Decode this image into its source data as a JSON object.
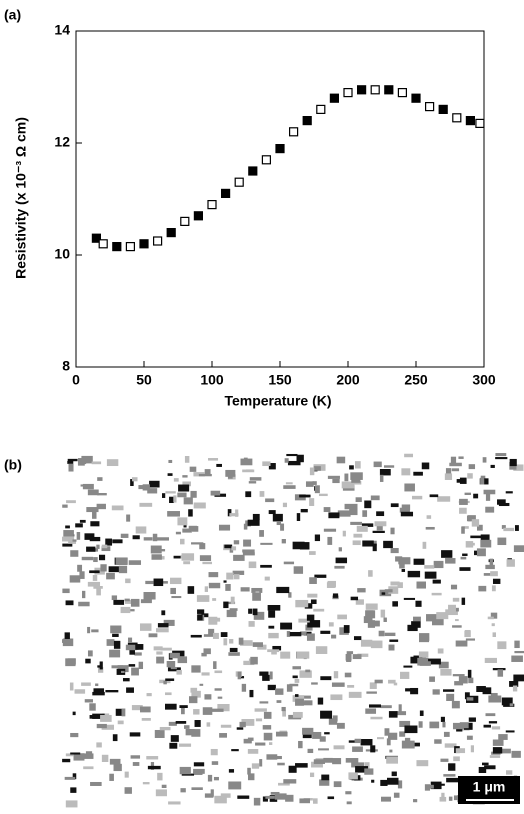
{
  "chart_data": {
    "type": "scatter",
    "panel_label": "(a)",
    "x_label": "Temperature (K)",
    "y_label": "Resistivity (x 10⁻³ Ω cm)",
    "x": [
      15,
      20,
      30,
      40,
      50,
      60,
      70,
      80,
      90,
      100,
      110,
      120,
      130,
      140,
      150,
      160,
      170,
      180,
      190,
      200,
      210,
      220,
      230,
      240,
      250,
      260,
      270,
      280,
      290,
      297
    ],
    "values": [
      10.3,
      10.2,
      10.15,
      10.15,
      10.2,
      10.25,
      10.4,
      10.6,
      10.7,
      10.9,
      11.1,
      11.3,
      11.5,
      11.7,
      11.9,
      12.2,
      12.4,
      12.6,
      12.8,
      12.9,
      12.95,
      12.95,
      12.95,
      12.9,
      12.8,
      12.65,
      12.6,
      12.45,
      12.4,
      12.35
    ],
    "color": "#000000",
    "xlim": [
      0,
      300
    ],
    "xticks": [
      0,
      50,
      100,
      150,
      200,
      250,
      300
    ],
    "ylim": [
      8,
      14
    ],
    "yticks": [
      8,
      10,
      12,
      14
    ],
    "grid": false
  },
  "image": {
    "panel_label": "(b)",
    "scale_bar": "1 μm"
  }
}
